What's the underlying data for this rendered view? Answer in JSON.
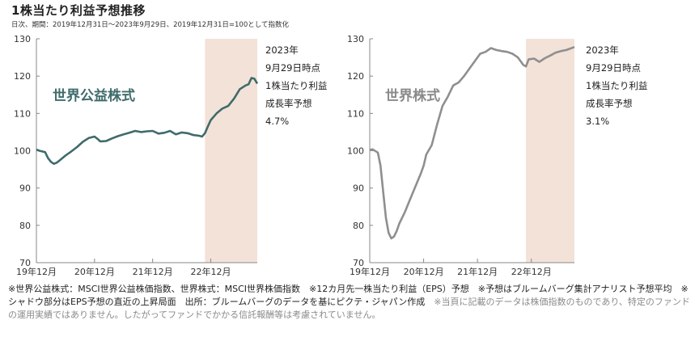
{
  "title": "1株当たり利益予想推移",
  "subtitle": "日次、期間：2019年12月31日～2023年9月29日、2019年12月31日=100として指数化",
  "chart_data": [
    {
      "type": "line",
      "title": "世界公益株式",
      "series_color": "#3f6b6b",
      "title_color": "#3f6b6b",
      "shade_color": "#f3e2d8",
      "shade_x": [
        2022.85,
        2023.75
      ],
      "xlim": [
        2019.95,
        2023.75
      ],
      "ylim": [
        70,
        130
      ],
      "yticks": [
        "130",
        "120",
        "110",
        "100",
        "90",
        "80",
        "70"
      ],
      "ytick_values": [
        130,
        120,
        110,
        100,
        90,
        80,
        70
      ],
      "xtick_labels": [
        "19年12月",
        "20年12月",
        "21年12月",
        "22年12月"
      ],
      "xtick_values": [
        2019.95,
        2020.95,
        2021.95,
        2022.95
      ],
      "annotation": [
        "2023年",
        "9月29日時点",
        "1株当たり利益",
        "成長率予想",
        "4.7%"
      ],
      "x": [
        2019.95,
        2020.0,
        2020.1,
        2020.15,
        2020.2,
        2020.25,
        2020.3,
        2020.35,
        2020.45,
        2020.55,
        2020.65,
        2020.75,
        2020.85,
        2020.95,
        2021.0,
        2021.05,
        2021.15,
        2021.25,
        2021.35,
        2021.45,
        2021.55,
        2021.65,
        2021.75,
        2021.85,
        2021.95,
        2022.05,
        2022.15,
        2022.25,
        2022.35,
        2022.45,
        2022.55,
        2022.65,
        2022.75,
        2022.8,
        2022.85,
        2022.9,
        2022.95,
        2023.05,
        2023.15,
        2023.25,
        2023.35,
        2023.45,
        2023.55,
        2023.6,
        2023.65,
        2023.7,
        2023.75
      ],
      "values": [
        100.3,
        100.0,
        99.6,
        98.0,
        97.0,
        96.5,
        96.8,
        97.4,
        98.7,
        99.8,
        101.0,
        102.4,
        103.4,
        103.8,
        103.2,
        102.5,
        102.6,
        103.3,
        103.9,
        104.4,
        104.8,
        105.3,
        105.0,
        105.2,
        105.3,
        104.6,
        104.8,
        105.3,
        104.4,
        104.9,
        104.7,
        104.2,
        104.0,
        103.8,
        104.7,
        106.5,
        108.2,
        110.0,
        111.3,
        112.0,
        114.0,
        116.5,
        117.5,
        117.8,
        119.5,
        119.3,
        118.0
      ]
    },
    {
      "type": "line",
      "title": "世界株式",
      "series_color": "#8f8f8f",
      "title_color": "#8a8a8a",
      "shade_color": "#f3e2d8",
      "shade_x": [
        2022.85,
        2023.75
      ],
      "xlim": [
        2019.95,
        2023.75
      ],
      "ylim": [
        70,
        130
      ],
      "yticks": [
        "130",
        "120",
        "110",
        "100",
        "90",
        "80",
        "70"
      ],
      "ytick_values": [
        130,
        120,
        110,
        100,
        90,
        80,
        70
      ],
      "xtick_labels": [
        "19年12月",
        "20年12月",
        "21年12月",
        "22年12月"
      ],
      "xtick_values": [
        2019.95,
        2020.95,
        2021.95,
        2022.95
      ],
      "annotation": [
        "2023年",
        "9月29日時点",
        "1株当たり利益",
        "成長率予想",
        "3.1%"
      ],
      "x": [
        2019.95,
        2020.0,
        2020.1,
        2020.15,
        2020.2,
        2020.25,
        2020.3,
        2020.35,
        2020.4,
        2020.45,
        2020.5,
        2020.6,
        2020.7,
        2020.8,
        2020.9,
        2020.95,
        2021.0,
        2021.1,
        2021.2,
        2021.3,
        2021.4,
        2021.5,
        2021.6,
        2021.7,
        2021.8,
        2021.9,
        2022.0,
        2022.1,
        2022.2,
        2022.3,
        2022.4,
        2022.5,
        2022.6,
        2022.7,
        2022.8,
        2022.85,
        2022.9,
        2023.0,
        2023.1,
        2023.2,
        2023.3,
        2023.4,
        2023.5,
        2023.6,
        2023.75
      ],
      "values": [
        100.2,
        100.4,
        99.5,
        96.0,
        89.0,
        82.0,
        78.0,
        76.5,
        77.0,
        78.5,
        80.5,
        83.5,
        87.0,
        90.5,
        94.0,
        96.0,
        99.0,
        101.5,
        107.0,
        112.0,
        114.5,
        117.5,
        118.3,
        120.0,
        122.0,
        124.0,
        126.0,
        126.5,
        127.5,
        127.0,
        126.7,
        126.5,
        126.0,
        125.0,
        123.0,
        122.6,
        124.5,
        124.7,
        123.8,
        124.8,
        125.5,
        126.3,
        126.7,
        127.0,
        127.8
      ]
    }
  ],
  "footnote": {
    "part1": "※世界公益株式：MSCI世界公益株価指数、世界株式：MSCI世界株価指数　※12カ月先一株当たり利益（EPS）予想　※予想はブルームバーグ集計アナリスト予想平均　※シャドウ部分はEPS予想の直近の上昇局面　出所：ブルームバーグのデータを基にピクテ・ジャパン作成",
    "part2": "　※当頁に記載のデータは株価指数のものであり、特定のファンドの運用実績ではありません。したがってファンドでかかる信託報酬等は考慮されていません。"
  }
}
